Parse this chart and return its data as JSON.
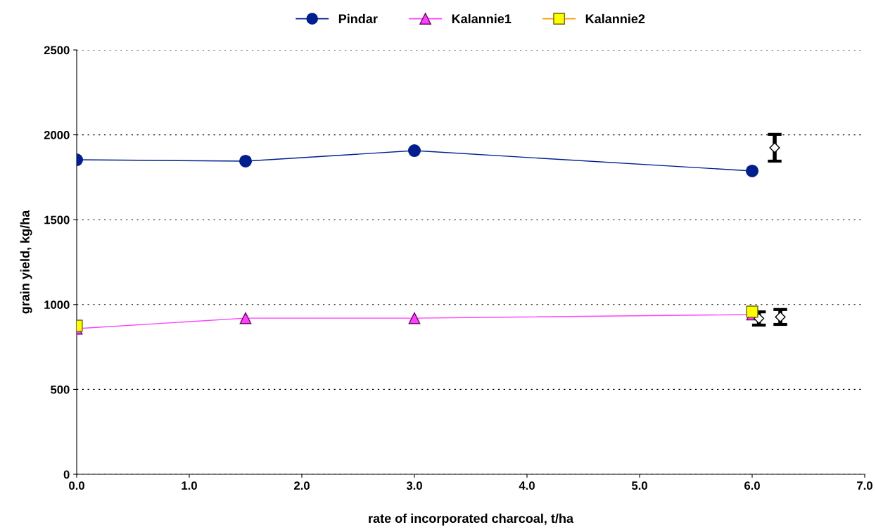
{
  "chart_data": {
    "type": "line",
    "xlabel": "rate of incorporated charcoal, t/ha",
    "ylabel": "grain yield, kg/ha",
    "xlim": [
      0,
      7
    ],
    "xticks": [
      {
        "value": 0,
        "label": "0.0"
      },
      {
        "value": 1,
        "label": "1.0"
      },
      {
        "value": 2,
        "label": "2.0"
      },
      {
        "value": 3,
        "label": "3.0"
      },
      {
        "value": 4,
        "label": "4.0"
      },
      {
        "value": 5,
        "label": "5.0"
      },
      {
        "value": 6,
        "label": "6.0"
      },
      {
        "value": 7,
        "label": "7.0"
      }
    ],
    "ylim": [
      0,
      2500
    ],
    "yticks": [
      0,
      500,
      1000,
      1500,
      2000,
      2500
    ],
    "grid": "y",
    "legend": "top",
    "series": [
      {
        "name": "Pindar",
        "color": "#001f8f",
        "marker": "circle",
        "line_style": "solid",
        "x": [
          0,
          1.5,
          3,
          6
        ],
        "values": [
          1853,
          1845,
          1907,
          1787
        ]
      },
      {
        "name": "Kalannie1",
        "color": "#ff40ff",
        "marker": "triangle",
        "line_style": "solid",
        "x": [
          0,
          1.5,
          3,
          6
        ],
        "values": [
          858,
          920,
          920,
          941
        ]
      },
      {
        "name": "Kalannie2",
        "type": "scatter",
        "color": "#ffff00",
        "marker": "square",
        "x": [
          0,
          6
        ],
        "values": [
          875,
          958
        ]
      },
      {
        "type": "scatter",
        "color": "#000000",
        "marker": "diamond",
        "x": [
          6.2
        ],
        "values": [
          1924
        ],
        "errors": [
          79
        ]
      },
      {
        "type": "scatter",
        "color": "#000000",
        "marker": "diamond",
        "x": [
          6.06
        ],
        "values": [
          918
        ],
        "errors": [
          39
        ]
      },
      {
        "type": "scatter",
        "color": "#000000",
        "marker": "diamond",
        "x": [
          6.25
        ],
        "values": [
          927
        ],
        "errors": [
          44
        ]
      }
    ]
  }
}
